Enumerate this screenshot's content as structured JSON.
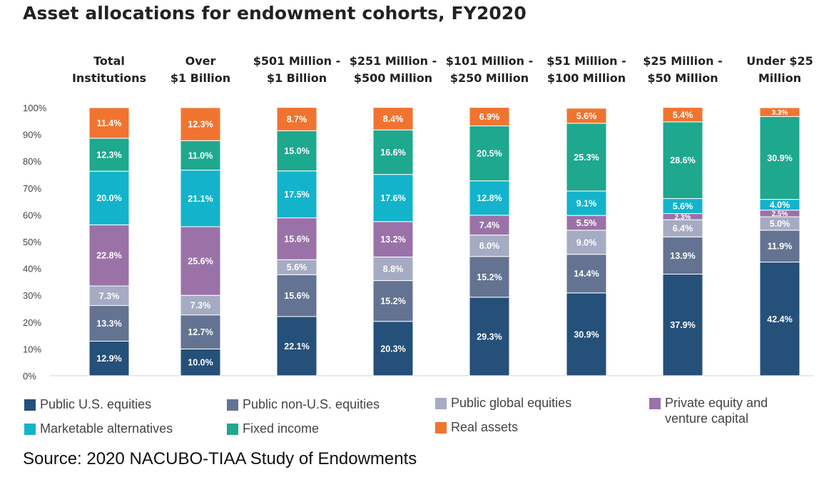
{
  "chart_data": {
    "type": "bar",
    "stacked": true,
    "title": "Asset allocations for endowment cohorts, FY2020",
    "categories": [
      "Total Institutions",
      "Over $1 Billion",
      "$501 Million - $1 Billion",
      "$251 Million - $500 Million",
      "$101 Million - $250 Million",
      "$51 Million - $100 Million",
      "$25 Million - $50 Million",
      "Under $25 Million"
    ],
    "category_lines": [
      [
        "Total",
        "Institutions"
      ],
      [
        "Over",
        "$1 Billion"
      ],
      [
        "$501 Million -",
        "$1 Billion"
      ],
      [
        "$251 Million -",
        "$500 Million"
      ],
      [
        "$101 Million -",
        "$250 Million"
      ],
      [
        "$51 Million -",
        "$100 Million"
      ],
      [
        "$25 Million -",
        "$50 Million"
      ],
      [
        "Under $25",
        "Million"
      ]
    ],
    "ylim": [
      0,
      100
    ],
    "yticks": [
      "0%",
      "10%",
      "20%",
      "30%",
      "40%",
      "50%",
      "60%",
      "70%",
      "80%",
      "90%",
      "100%"
    ],
    "grid": false,
    "legend_position": "bottom",
    "series": [
      {
        "name": "Public U.S. equities",
        "color": "#25507a",
        "label_color": "#ffffff",
        "values": [
          12.9,
          10.0,
          22.1,
          20.3,
          29.3,
          30.9,
          37.9,
          42.4
        ]
      },
      {
        "name": "Public non-U.S. equities",
        "color": "#647392",
        "label_color": "#ffffff",
        "values": [
          13.3,
          12.7,
          15.6,
          15.2,
          15.2,
          14.4,
          13.9,
          11.9
        ]
      },
      {
        "name": "Public global equities",
        "color": "#a5abc2",
        "label_color": "#ffffff",
        "values": [
          7.3,
          7.3,
          5.6,
          8.8,
          8.0,
          9.0,
          6.4,
          5.0
        ]
      },
      {
        "name": "Private equity and venture capital",
        "color": "#9a72a8",
        "label_color": "#ffffff",
        "values": [
          22.8,
          25.6,
          15.6,
          13.2,
          7.4,
          5.5,
          2.3,
          2.5
        ]
      },
      {
        "name": "Marketable alternatives",
        "color": "#13b3cc",
        "label_color": "#ffffff",
        "values": [
          20.0,
          21.1,
          17.5,
          17.6,
          12.8,
          9.1,
          5.6,
          4.0
        ]
      },
      {
        "name": "Fixed income",
        "color": "#1ea88e",
        "label_color": "#ffffff",
        "values": [
          12.3,
          11.0,
          15.0,
          16.6,
          20.5,
          25.3,
          28.6,
          30.9
        ]
      },
      {
        "name": "Real assets",
        "color": "#f07430",
        "label_color": "#ffffff",
        "values": [
          11.4,
          12.3,
          8.7,
          8.4,
          6.9,
          5.6,
          5.4,
          3.3
        ]
      }
    ],
    "data_labels": [
      [
        "12.9%",
        "10.0%",
        "22.1%",
        "20.3%",
        "29.3%",
        "30.9%",
        "37.9%",
        "42.4%"
      ],
      [
        "13.3%",
        "12.7%",
        "15.6%",
        "15.2%",
        "15.2%",
        "14.4%",
        "13.9%",
        "11.9%"
      ],
      [
        "7.3%",
        "7.3%",
        "5.6%",
        "8.8%",
        "8.0%",
        "9.0%",
        "6.4%",
        "5.0%"
      ],
      [
        "22.8%",
        "25.6%",
        "15.6%",
        "13.2%",
        "7.4%",
        "5.5%",
        "2.3%",
        "2.5%"
      ],
      [
        "20.0%",
        "21.1%",
        "17.5%",
        "17.6%",
        "12.8%",
        "9.1%",
        "5.6%",
        "4.0%"
      ],
      [
        "12.3%",
        "11.0%",
        "15.0%",
        "16.6%",
        "20.5%",
        "25.3%",
        "28.6%",
        "30.9%"
      ],
      [
        "11.4%",
        "12.3%",
        "8.7%",
        "8.4%",
        "6.9%",
        "5.6%",
        "5.4%",
        "3.3%"
      ]
    ]
  },
  "legend": [
    {
      "label": "Public U.S. equities",
      "lines": [
        "Public U.S. equities"
      ],
      "color": "#25507a"
    },
    {
      "label": "Public non-U.S. equities",
      "lines": [
        "Public non-U.S. equities"
      ],
      "color": "#647392"
    },
    {
      "label": "Public global equities",
      "lines": [
        "Public global equities"
      ],
      "color": "#a5abc2"
    },
    {
      "label": "Private equity and venture capital",
      "lines": [
        "Private equity and",
        "venture capital"
      ],
      "color": "#9a72a8"
    },
    {
      "label": "Marketable alternatives",
      "lines": [
        "Marketable alternatives"
      ],
      "color": "#13b3cc"
    },
    {
      "label": "Fixed income",
      "lines": [
        "Fixed income"
      ],
      "color": "#1ea88e"
    },
    {
      "label": "Real assets",
      "lines": [
        "Real assets"
      ],
      "color": "#f07430"
    }
  ],
  "source": "Source: 2020 NACUBO-TIAA Study of Endowments"
}
